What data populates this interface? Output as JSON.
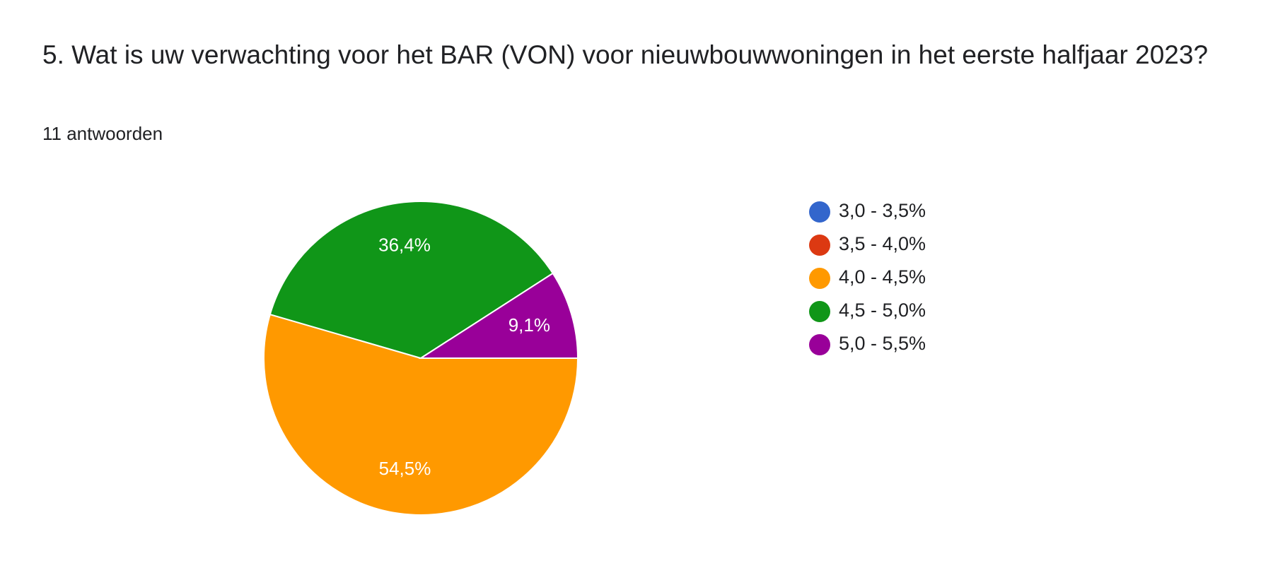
{
  "chart_data": {
    "type": "pie",
    "title": "5. Wat is uw verwachting voor het BAR (VON) voor nieuwbouwwoningen in het eerste halfjaar 2023?",
    "subtitle": "11 antwoorden",
    "categories": [
      "3,0 - 3,5%",
      "3,5 - 4,0%",
      "4,0 - 4,5%",
      "4,5 - 5,0%",
      "5,0 - 5,5%"
    ],
    "values": [
      0,
      0,
      54.5,
      36.4,
      9.1
    ],
    "value_labels": [
      null,
      null,
      "54,5%",
      "36,4%",
      "9,1%"
    ],
    "colors": [
      "#3366cc",
      "#dc3912",
      "#ff9900",
      "#109618",
      "#990099"
    ],
    "legend": "right"
  }
}
